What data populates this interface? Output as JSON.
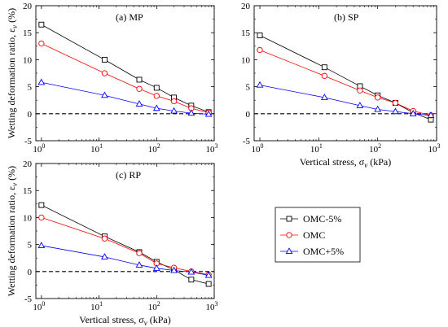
{
  "figure": {
    "x_scale": "log",
    "y_axis_label": "Wetting deformation ratio, ε",
    "y_axis_sub": "v",
    "y_axis_unit": "(%)",
    "x_axis_label": "Vertical stress, σ",
    "x_axis_sub": "v",
    "x_axis_unit": "(kPa)",
    "x_tick_exponents": [
      "0",
      "1",
      "2",
      "3"
    ],
    "legend": {
      "placement": "separate-box-lower-right",
      "entries": [
        {
          "name": "OMC-5%",
          "marker": "square",
          "color": "#000000"
        },
        {
          "name": "OMC",
          "marker": "circle",
          "color": "#ff0000"
        },
        {
          "name": "OMC+5%",
          "marker": "triangle",
          "color": "#0000ff"
        }
      ]
    }
  },
  "chart_data": [
    {
      "type": "line",
      "panel": "(a) MP",
      "x_scale": "log",
      "xlim": [
        0.8,
        1000
      ],
      "ylim": [
        -5,
        20
      ],
      "yticks": [
        -5,
        0,
        5,
        10,
        15,
        20
      ],
      "reference_line": {
        "y": 0,
        "style": "dashed"
      },
      "series": [
        {
          "name": "OMC-5%",
          "color": "#000000",
          "marker": "square",
          "x": [
            1,
            12.5,
            50,
            100,
            200,
            400,
            800
          ],
          "y": [
            16.5,
            10.0,
            6.3,
            4.8,
            3.0,
            1.5,
            0.3
          ]
        },
        {
          "name": "OMC",
          "color": "#ff0000",
          "marker": "circle",
          "x": [
            1,
            12.5,
            50,
            100,
            200,
            400,
            800
          ],
          "y": [
            13.0,
            7.5,
            4.6,
            3.3,
            2.3,
            1.0,
            0.2
          ]
        },
        {
          "name": "OMC+5%",
          "color": "#0000ff",
          "marker": "triangle",
          "x": [
            1,
            12.5,
            50,
            100,
            200,
            400,
            800
          ],
          "y": [
            5.8,
            3.4,
            1.8,
            1.0,
            0.5,
            0.1,
            -0.1
          ]
        }
      ]
    },
    {
      "type": "line",
      "panel": "(b) SP",
      "x_scale": "log",
      "xlim": [
        0.8,
        1000
      ],
      "ylim": [
        -5,
        20
      ],
      "yticks": [
        -5,
        0,
        5,
        10,
        15,
        20
      ],
      "reference_line": {
        "y": 0,
        "style": "dashed"
      },
      "series": [
        {
          "name": "OMC-5%",
          "color": "#000000",
          "marker": "square",
          "x": [
            1,
            12.5,
            50,
            100,
            200,
            400,
            800
          ],
          "y": [
            14.5,
            8.6,
            5.1,
            3.4,
            2.0,
            0.2,
            -1.1
          ]
        },
        {
          "name": "OMC",
          "color": "#ff0000",
          "marker": "circle",
          "x": [
            1,
            12.5,
            50,
            100,
            200,
            400,
            800
          ],
          "y": [
            11.8,
            7.0,
            4.3,
            3.0,
            2.0,
            0.5,
            -0.3
          ]
        },
        {
          "name": "OMC+5%",
          "color": "#0000ff",
          "marker": "triangle",
          "x": [
            1,
            12.5,
            50,
            100,
            200,
            400,
            800
          ],
          "y": [
            5.3,
            3.0,
            1.5,
            0.8,
            0.4,
            0.0,
            -0.3
          ]
        }
      ]
    },
    {
      "type": "line",
      "panel": "(c) RP",
      "x_scale": "log",
      "xlim": [
        0.8,
        1000
      ],
      "ylim": [
        -5,
        20
      ],
      "yticks": [
        -5,
        0,
        5,
        10,
        15,
        20
      ],
      "reference_line": {
        "y": 0,
        "style": "dashed"
      },
      "series": [
        {
          "name": "OMC-5%",
          "color": "#000000",
          "marker": "square",
          "x": [
            1,
            12.5,
            50,
            100,
            200,
            400,
            800
          ],
          "y": [
            12.3,
            6.5,
            3.6,
            1.8,
            0.3,
            -1.5,
            -2.3
          ]
        },
        {
          "name": "OMC",
          "color": "#ff0000",
          "marker": "circle",
          "x": [
            1,
            12.5,
            50,
            100,
            200,
            400,
            800
          ],
          "y": [
            10.0,
            6.1,
            3.4,
            1.5,
            0.7,
            0.0,
            -0.6
          ]
        },
        {
          "name": "OMC+5%",
          "color": "#0000ff",
          "marker": "triangle",
          "x": [
            1,
            12.5,
            50,
            100,
            200,
            400,
            800
          ],
          "y": [
            4.8,
            2.7,
            1.2,
            0.6,
            0.2,
            -0.1,
            -0.7
          ]
        }
      ]
    }
  ]
}
